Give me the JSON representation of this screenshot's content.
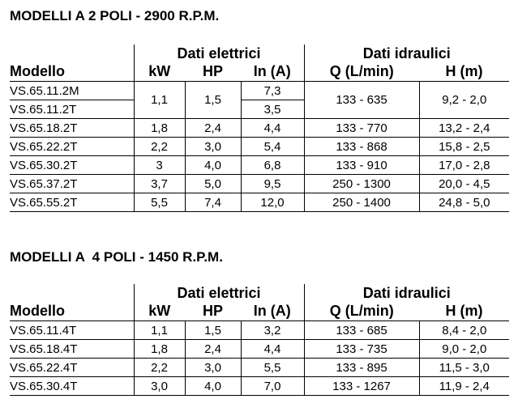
{
  "sections": [
    {
      "title": "MODELLI A 2 POLI - 2900 R.P.M.",
      "group_headers": [
        "Dati elettrici",
        "Dati idraulici"
      ],
      "columns": [
        "Modello",
        "kW",
        "HP",
        "In (A)",
        "Q (L/min)",
        "H (m)"
      ],
      "rows": [
        {
          "models": [
            "VS.65.11.2M",
            "VS.65.11.2T"
          ],
          "kw": "1,1",
          "hp": "1,5",
          "in": [
            "7,3",
            "3,5"
          ],
          "q": "133 - 635",
          "h": "9,2 - 2,0"
        },
        {
          "models": [
            "VS.65.18.2T"
          ],
          "kw": "1,8",
          "hp": "2,4",
          "in": [
            "4,4"
          ],
          "q": "133 - 770",
          "h": "13,2 - 2,4"
        },
        {
          "models": [
            "VS.65.22.2T"
          ],
          "kw": "2,2",
          "hp": "3,0",
          "in": [
            "5,4"
          ],
          "q": "133 - 868",
          "h": "15,8 - 2,5"
        },
        {
          "models": [
            "VS.65.30.2T"
          ],
          "kw": "3",
          "hp": "4,0",
          "in": [
            "6,8"
          ],
          "q": "133 - 910",
          "h": "17,0 - 2,8"
        },
        {
          "models": [
            "VS.65.37.2T"
          ],
          "kw": "3,7",
          "hp": "5,0",
          "in": [
            "9,5"
          ],
          "q": "250 - 1300",
          "h": "20,0 - 4,5"
        },
        {
          "models": [
            "VS.65.55.2T"
          ],
          "kw": "5,5",
          "hp": "7,4",
          "in": [
            "12,0"
          ],
          "q": "250 - 1400",
          "h": "24,8 - 5,0"
        }
      ]
    },
    {
      "title": "MODELLI A  4 POLI - 1450 R.P.M.",
      "group_headers": [
        "Dati elettrici",
        "Dati idraulici"
      ],
      "columns": [
        "Modello",
        "kW",
        "HP",
        "In (A)",
        "Q (L/min)",
        "H (m)"
      ],
      "rows": [
        {
          "models": [
            "VS.65.11.4T"
          ],
          "kw": "1,1",
          "hp": "1,5",
          "in": [
            "3,2"
          ],
          "q": "133 - 685",
          "h": "8,4 - 2,0"
        },
        {
          "models": [
            "VS.65.18.4T"
          ],
          "kw": "1,8",
          "hp": "2,4",
          "in": [
            "4,4"
          ],
          "q": "133 - 735",
          "h": "9,0 - 2,0"
        },
        {
          "models": [
            "VS.65.22.4T"
          ],
          "kw": "2,2",
          "hp": "3,0",
          "in": [
            "5,5"
          ],
          "q": "133 - 895",
          "h": "11,5 - 3,0"
        },
        {
          "models": [
            "VS.65.30.4T"
          ],
          "kw": "3,0",
          "hp": "4,0",
          "in": [
            "7,0"
          ],
          "q": "133 - 1267",
          "h": "11,9 - 2,4"
        }
      ]
    }
  ]
}
